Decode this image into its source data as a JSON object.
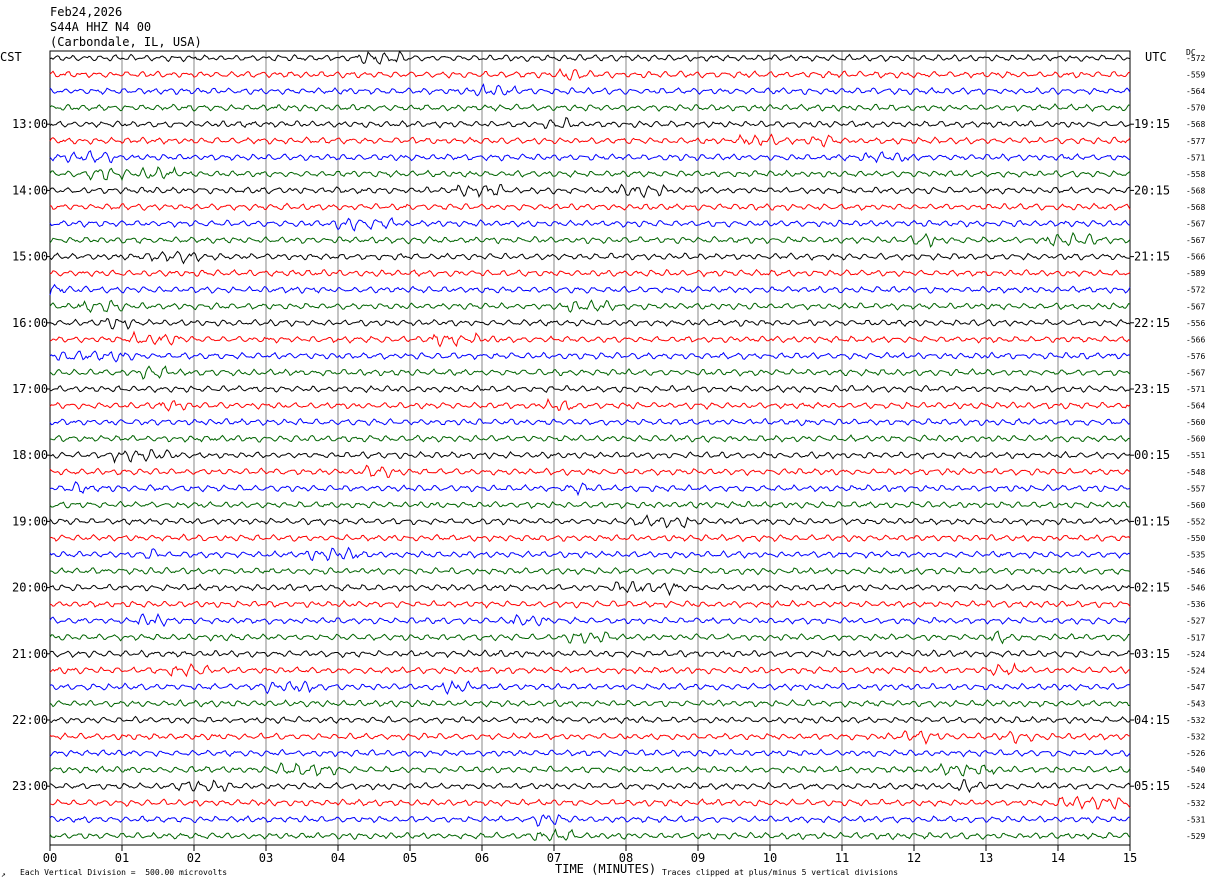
{
  "header": {
    "date": "Feb24,2026",
    "station": "S44A HHZ N4 00",
    "location": "(Carbondale, IL, USA)"
  },
  "left_timezone": "CST",
  "right_timezone": "UTC",
  "dc_header": "DC",
  "footer": {
    "vertical_division": "Each Vertical Division =  500.00 microvolts",
    "clipping": "Traces clipped at plus/minus 5 vertical divisions",
    "corner_mark": "↗"
  },
  "colors": {
    "trace_cycle": [
      "#000000",
      "#ff0000",
      "#0000ff",
      "#006400"
    ],
    "grid": "#000000",
    "background": "#ffffff"
  },
  "chart_data": {
    "type": "line",
    "title": "",
    "xlabel": "TIME (MINUTES)",
    "ylabel": "",
    "xlim": [
      0,
      15
    ],
    "x_ticks": [
      "00",
      "01",
      "02",
      "03",
      "04",
      "05",
      "06",
      "07",
      "08",
      "09",
      "10",
      "11",
      "12",
      "13",
      "14",
      "15"
    ],
    "grid": true,
    "traces_per_hour": 4,
    "trace_count": 48,
    "left_hour_labels": [
      "13:00",
      "14:00",
      "15:00",
      "16:00",
      "17:00",
      "18:00",
      "19:00",
      "20:00",
      "21:00",
      "22:00",
      "23:00"
    ],
    "right_hour_labels": [
      "19:15",
      "20:15",
      "21:15",
      "22:15",
      "23:15",
      "00:15",
      "01:15",
      "02:15",
      "03:15",
      "04:15",
      "05:15"
    ],
    "dc_offsets": [
      -572,
      -559,
      -564,
      -570,
      -568,
      -577,
      -571,
      -558,
      -568,
      -568,
      -567,
      -567,
      -566,
      -589,
      -572,
      -567,
      -556,
      -566,
      -576,
      -567,
      -571,
      -564,
      -560,
      -560,
      -551,
      -548,
      -557,
      -560,
      -552,
      -550,
      -535,
      -546,
      -546,
      -536,
      -527,
      -517,
      -524,
      -524,
      -547,
      -543,
      -532,
      -532,
      -526,
      -540,
      -524,
      -532,
      -531,
      -529
    ]
  }
}
